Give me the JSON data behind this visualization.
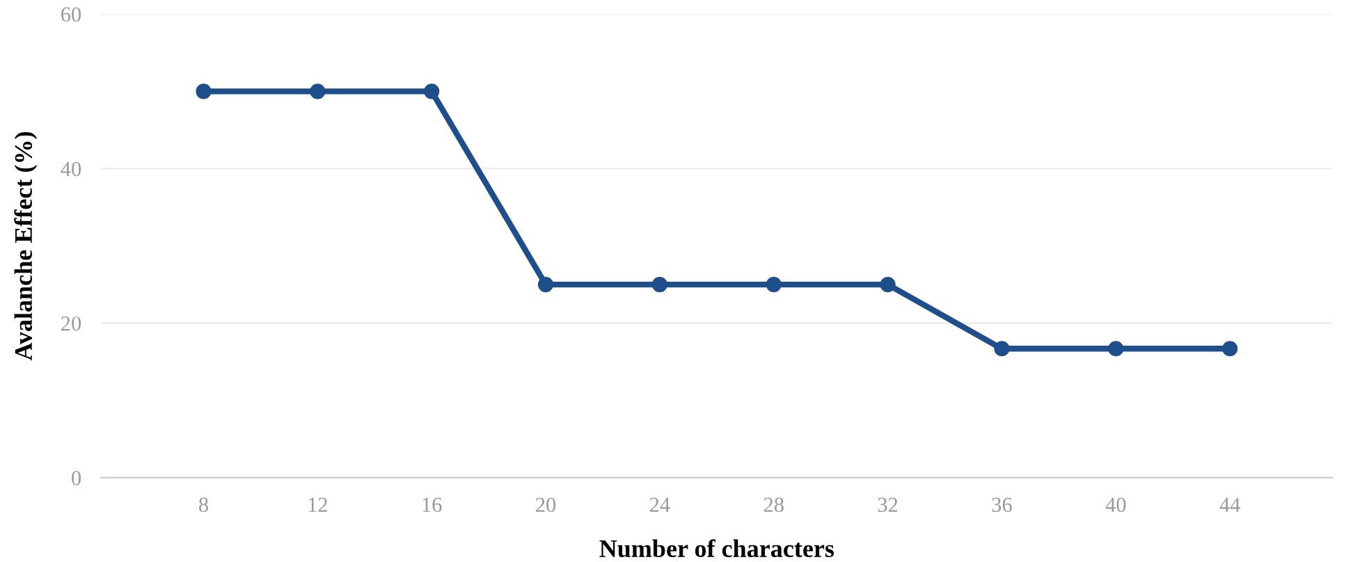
{
  "chart_data": {
    "type": "line",
    "xlabel": "Number of characters",
    "ylabel": "Avalanche Effect (%)",
    "categories": [
      "8",
      "12",
      "16",
      "20",
      "24",
      "28",
      "32",
      "36",
      "40",
      "44"
    ],
    "series": [
      {
        "color": "#1f4e8c",
        "values": [
          50,
          50,
          50,
          25,
          25,
          25,
          25,
          16.7,
          16.7,
          16.7
        ]
      }
    ],
    "ylim": [
      0,
      60
    ],
    "yticks": [
      0,
      20,
      40,
      60
    ],
    "grid": "y",
    "marker": "circle",
    "line_style": "solid"
  }
}
